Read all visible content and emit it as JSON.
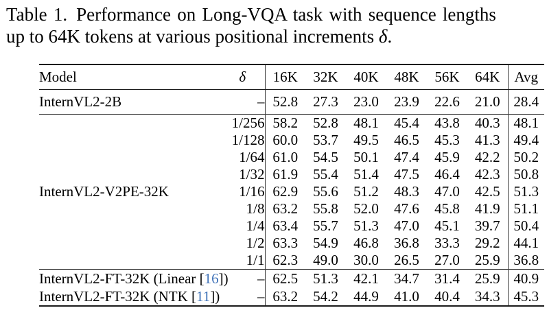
{
  "caption": {
    "label": "Table 1.",
    "line1": "Performance on Long-VQA task with sequence lengths",
    "line2": "up to 64K tokens at various positional increments ",
    "symbol": "δ",
    "period": "."
  },
  "table": {
    "columns": [
      "Model",
      "δ",
      "16K",
      "32K",
      "40K",
      "48K",
      "56K",
      "64K",
      "Avg"
    ],
    "sections": [
      {
        "rows": [
          {
            "model": [
              {
                "t": "InternVL2-2B"
              }
            ],
            "delta": "–",
            "values": [
              "52.8",
              "27.3",
              "23.0",
              "23.9",
              "22.6",
              "21.0"
            ],
            "avg": "28.4",
            "bold": [],
            "avg_bold": false
          }
        ]
      },
      {
        "group_model": "InternVL2-V2PE-32K",
        "rows": [
          {
            "delta": "1/256",
            "values": [
              "58.2",
              "52.8",
              "48.1",
              "45.4",
              "43.8",
              "40.3"
            ],
            "avg": "48.1",
            "bold": [],
            "avg_bold": false
          },
          {
            "delta": "1/128",
            "values": [
              "60.0",
              "53.7",
              "49.5",
              "46.5",
              "45.3",
              "41.3"
            ],
            "avg": "49.4",
            "bold": [],
            "avg_bold": false
          },
          {
            "delta": "1/64",
            "values": [
              "61.0",
              "54.5",
              "50.1",
              "47.4",
              "45.9",
              "42.2"
            ],
            "avg": "50.2",
            "bold": [],
            "avg_bold": false
          },
          {
            "delta": "1/32",
            "values": [
              "61.9",
              "55.4",
              "51.4",
              "47.5",
              "46.4",
              "42.3"
            ],
            "avg": "50.8",
            "bold": [],
            "avg_bold": false
          },
          {
            "delta": "1/16",
            "values": [
              "62.9",
              "55.6",
              "51.2",
              "48.3",
              "47.0",
              "42.5"
            ],
            "avg": "51.3",
            "bold": [
              3,
              4,
              5
            ],
            "avg_bold": true
          },
          {
            "delta": "1/8",
            "values": [
              "63.2",
              "55.8",
              "52.0",
              "47.6",
              "45.8",
              "41.9"
            ],
            "avg": "51.1",
            "bold": [
              1,
              2
            ],
            "avg_bold": false
          },
          {
            "delta": "1/4",
            "values": [
              "63.4",
              "55.7",
              "51.3",
              "47.0",
              "45.1",
              "39.7"
            ],
            "avg": "50.4",
            "bold": [
              0
            ],
            "avg_bold": false
          },
          {
            "delta": "1/2",
            "values": [
              "63.3",
              "54.9",
              "46.8",
              "36.8",
              "33.3",
              "29.2"
            ],
            "avg": "44.1",
            "bold": [],
            "avg_bold": false
          },
          {
            "delta": "1/1",
            "values": [
              "62.3",
              "49.0",
              "30.0",
              "26.5",
              "27.0",
              "25.9"
            ],
            "avg": "36.8",
            "bold": [],
            "avg_bold": false
          }
        ]
      },
      {
        "rows": [
          {
            "model": [
              {
                "t": "InternVL2-FT-32K (Linear ["
              },
              {
                "t": "16",
                "cite": true
              },
              {
                "t": "])"
              }
            ],
            "delta": "–",
            "values": [
              "62.5",
              "51.3",
              "42.1",
              "34.7",
              "31.4",
              "25.9"
            ],
            "avg": "40.9",
            "bold": [],
            "avg_bold": false
          },
          {
            "model": [
              {
                "t": "InternVL2-FT-32K (NTK ["
              },
              {
                "t": "11",
                "cite": true
              },
              {
                "t": "])"
              }
            ],
            "delta": "–",
            "values": [
              "63.2",
              "54.2",
              "44.9",
              "41.0",
              "40.4",
              "34.3"
            ],
            "avg": "45.3",
            "bold": [],
            "avg_bold": false
          }
        ]
      }
    ]
  },
  "colors": {
    "cite": "#3f72b8",
    "text": "#000000",
    "background": "#ffffff",
    "rule": "#1a1a1a"
  }
}
